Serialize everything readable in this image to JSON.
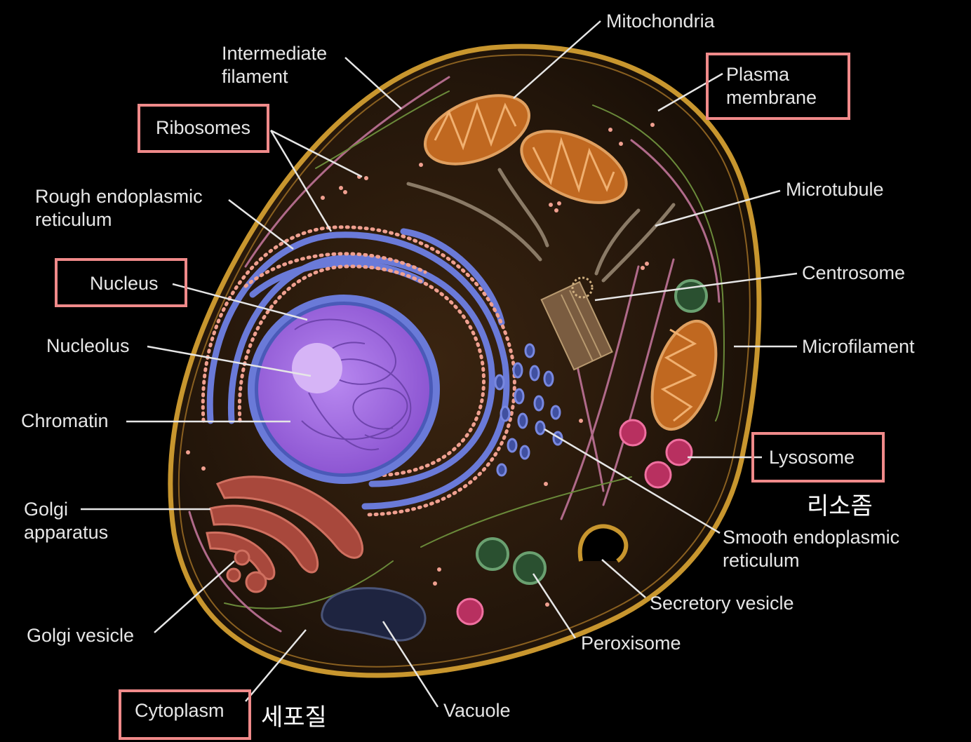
{
  "labels": {
    "mitochondria": "Mitochondria",
    "intermediate_filament": [
      "Intermediate",
      "filament"
    ],
    "plasma_membrane": [
      "Plasma",
      "membrane"
    ],
    "ribosomes": "Ribosomes",
    "rough_er": [
      "Rough endoplasmic",
      "reticulum"
    ],
    "microtubule": "Microtubule",
    "nucleus": "Nucleus",
    "centrosome": "Centrosome",
    "nucleolus": "Nucleolus",
    "microfilament": "Microfilament",
    "chromatin": "Chromatin",
    "lysosome": "Lysosome",
    "golgi_apparatus": [
      "Golgi",
      "apparatus"
    ],
    "smooth_er": [
      "Smooth endoplasmic",
      "reticulum"
    ],
    "secretory_vesicle": "Secretory vesicle",
    "golgi_vesicle": "Golgi vesicle",
    "peroxisome": "Peroxisome",
    "cytoplasm": "Cytoplasm",
    "vacuole": "Vacuole"
  },
  "korean": {
    "lysosome": "리소좀",
    "cytoplasm": "세포질"
  },
  "highlighted": [
    "Ribosomes",
    "Nucleus",
    "Plasma membrane",
    "Lysosome",
    "Cytoplasm"
  ],
  "colors": {
    "highlight_box": "#f08a8a",
    "membrane": "#c8962e",
    "nucleus": "#a070e0",
    "er": "#6878d8",
    "ribosome": "#f0a090",
    "mitochondria": "#e08a40",
    "golgi": "#b84a40"
  }
}
